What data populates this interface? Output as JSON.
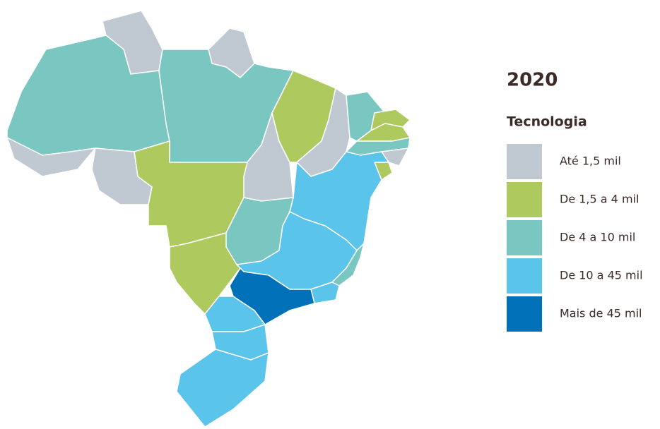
{
  "title": "2020",
  "subtitle": "Tecnologia",
  "legend": {
    "items": [
      {
        "label": "Até 1,5 mil",
        "color": "#c0c9d1"
      },
      {
        "label": "De 1,5 a 4 mil",
        "color": "#aeca5f"
      },
      {
        "label": "De 4 a 10 mil",
        "color": "#7ac6c0"
      },
      {
        "label": "De 10 a 45 mil",
        "color": "#5bc4ea"
      },
      {
        "label": "Mais de 45 mil",
        "color": "#0070b8"
      }
    ]
  }
}
